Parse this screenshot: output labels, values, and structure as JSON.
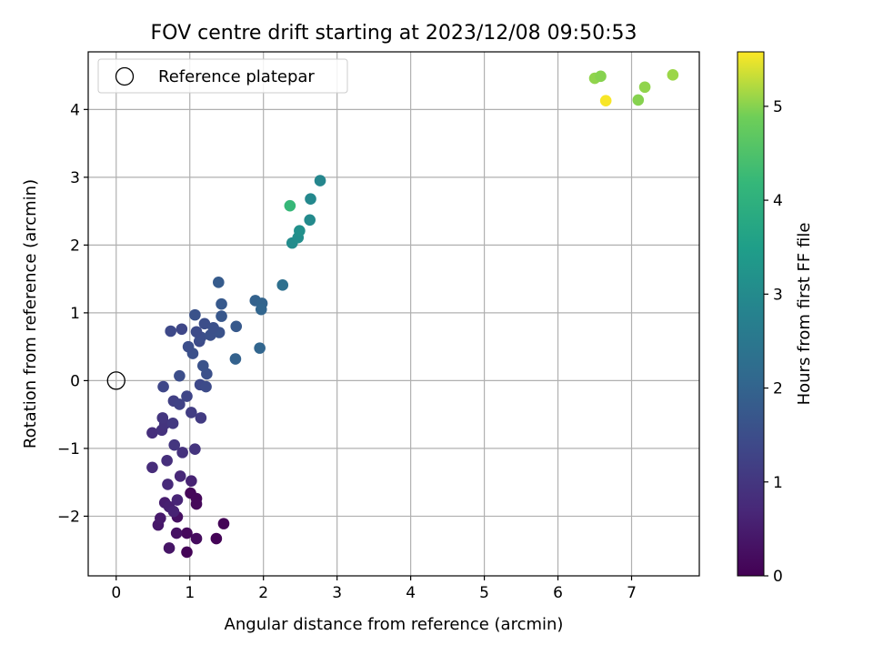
{
  "chart_data": {
    "type": "scatter",
    "title": "FOV centre drift starting at 2023/12/08 09:50:53",
    "xlabel": "Angular distance from reference (arcmin)",
    "ylabel": "Rotation from reference (arcmin)",
    "xlim": [
      -0.38,
      7.92
    ],
    "ylim": [
      -2.88,
      4.85
    ],
    "x_ticks": [
      0,
      1,
      2,
      3,
      4,
      5,
      6,
      7
    ],
    "y_ticks": [
      -2,
      -1,
      0,
      1,
      2,
      3,
      4
    ],
    "x_tick_labels": [
      "0",
      "1",
      "2",
      "3",
      "4",
      "5",
      "6",
      "7"
    ],
    "y_tick_labels": [
      "−2",
      "−1",
      "0",
      "1",
      "2",
      "3",
      "4"
    ],
    "grid": true,
    "legend": {
      "position": "top-left",
      "entries": [
        "Reference platepar"
      ]
    },
    "reference_point": {
      "x": 0,
      "y": 0,
      "label": "Reference platepar",
      "marker": "open-circle"
    },
    "colorbar": {
      "label": "Hours from first FF file",
      "range": [
        0,
        5.58
      ],
      "ticks": [
        0,
        1,
        2,
        3,
        4,
        5
      ],
      "tick_labels": [
        "0",
        "1",
        "2",
        "3",
        "4",
        "5"
      ],
      "colormap": "viridis",
      "position": "right"
    },
    "points": [
      {
        "x": 0.96,
        "y": -2.53,
        "t": 0.05
      },
      {
        "x": 1.36,
        "y": -2.33,
        "t": 0.05
      },
      {
        "x": 1.46,
        "y": -2.11,
        "t": 0.05
      },
      {
        "x": 1.01,
        "y": -1.66,
        "t": 0.1
      },
      {
        "x": 1.09,
        "y": -1.74,
        "t": 0.1
      },
      {
        "x": 1.09,
        "y": -1.82,
        "t": 0.12
      },
      {
        "x": 0.96,
        "y": -2.25,
        "t": 0.15
      },
      {
        "x": 1.09,
        "y": -2.33,
        "t": 0.2
      },
      {
        "x": 0.83,
        "y": -2.01,
        "t": 0.25
      },
      {
        "x": 0.82,
        "y": -2.25,
        "t": 0.3
      },
      {
        "x": 0.72,
        "y": -2.47,
        "t": 0.35
      },
      {
        "x": 0.57,
        "y": -2.13,
        "t": 0.4
      },
      {
        "x": 0.6,
        "y": -2.03,
        "t": 0.45
      },
      {
        "x": 0.66,
        "y": -1.8,
        "t": 0.5
      },
      {
        "x": 0.72,
        "y": -1.86,
        "t": 0.55
      },
      {
        "x": 0.78,
        "y": -1.93,
        "t": 0.6
      },
      {
        "x": 0.83,
        "y": -1.76,
        "t": 0.65
      },
      {
        "x": 1.02,
        "y": -1.48,
        "t": 0.6
      },
      {
        "x": 0.87,
        "y": -1.41,
        "t": 0.7
      },
      {
        "x": 0.7,
        "y": -1.53,
        "t": 0.75
      },
      {
        "x": 0.49,
        "y": -1.28,
        "t": 0.8
      },
      {
        "x": 0.69,
        "y": -1.18,
        "t": 0.85
      },
      {
        "x": 0.9,
        "y": -1.06,
        "t": 0.9
      },
      {
        "x": 1.07,
        "y": -1.01,
        "t": 0.95
      },
      {
        "x": 0.79,
        "y": -0.95,
        "t": 1.0
      },
      {
        "x": 0.49,
        "y": -0.77,
        "t": 0.85
      },
      {
        "x": 0.62,
        "y": -0.73,
        "t": 0.9
      },
      {
        "x": 0.66,
        "y": -0.64,
        "t": 0.95
      },
      {
        "x": 0.63,
        "y": -0.55,
        "t": 1.0
      },
      {
        "x": 0.77,
        "y": -0.63,
        "t": 1.05
      },
      {
        "x": 1.15,
        "y": -0.55,
        "t": 1.1
      },
      {
        "x": 1.02,
        "y": -0.47,
        "t": 1.15
      },
      {
        "x": 0.78,
        "y": -0.3,
        "t": 1.2
      },
      {
        "x": 0.86,
        "y": -0.35,
        "t": 1.25
      },
      {
        "x": 0.96,
        "y": -0.23,
        "t": 1.3
      },
      {
        "x": 0.64,
        "y": -0.09,
        "t": 1.35
      },
      {
        "x": 1.14,
        "y": -0.06,
        "t": 1.4
      },
      {
        "x": 1.22,
        "y": -0.09,
        "t": 1.45
      },
      {
        "x": 0.86,
        "y": 0.07,
        "t": 1.5
      },
      {
        "x": 1.23,
        "y": 0.1,
        "t": 1.55
      },
      {
        "x": 1.18,
        "y": 0.22,
        "t": 1.6
      },
      {
        "x": 1.04,
        "y": 0.4,
        "t": 1.55
      },
      {
        "x": 0.98,
        "y": 0.5,
        "t": 1.5
      },
      {
        "x": 1.13,
        "y": 0.58,
        "t": 1.45
      },
      {
        "x": 1.15,
        "y": 0.64,
        "t": 1.5
      },
      {
        "x": 1.28,
        "y": 0.67,
        "t": 1.55
      },
      {
        "x": 1.4,
        "y": 0.71,
        "t": 1.6
      },
      {
        "x": 1.09,
        "y": 0.72,
        "t": 1.45
      },
      {
        "x": 0.74,
        "y": 0.73,
        "t": 1.4
      },
      {
        "x": 0.89,
        "y": 0.76,
        "t": 1.35
      },
      {
        "x": 1.2,
        "y": 0.84,
        "t": 1.5
      },
      {
        "x": 1.32,
        "y": 0.78,
        "t": 1.55
      },
      {
        "x": 1.63,
        "y": 0.8,
        "t": 1.75
      },
      {
        "x": 1.43,
        "y": 0.95,
        "t": 1.7
      },
      {
        "x": 1.07,
        "y": 0.97,
        "t": 1.6
      },
      {
        "x": 1.43,
        "y": 1.13,
        "t": 1.75
      },
      {
        "x": 1.39,
        "y": 1.45,
        "t": 1.8
      },
      {
        "x": 1.62,
        "y": 0.32,
        "t": 1.95
      },
      {
        "x": 1.95,
        "y": 0.48,
        "t": 2.05
      },
      {
        "x": 1.89,
        "y": 1.18,
        "t": 1.95
      },
      {
        "x": 1.98,
        "y": 1.14,
        "t": 2.0
      },
      {
        "x": 1.97,
        "y": 1.05,
        "t": 2.05
      },
      {
        "x": 2.26,
        "y": 1.41,
        "t": 2.3
      },
      {
        "x": 2.39,
        "y": 2.03,
        "t": 3.05
      },
      {
        "x": 2.47,
        "y": 2.11,
        "t": 3.1
      },
      {
        "x": 2.49,
        "y": 2.21,
        "t": 3.15
      },
      {
        "x": 2.63,
        "y": 2.37,
        "t": 3.0
      },
      {
        "x": 2.64,
        "y": 2.68,
        "t": 2.95
      },
      {
        "x": 2.77,
        "y": 2.95,
        "t": 2.9
      },
      {
        "x": 2.36,
        "y": 2.58,
        "t": 4.2
      },
      {
        "x": 6.5,
        "y": 4.46,
        "t": 5.05
      },
      {
        "x": 6.58,
        "y": 4.49,
        "t": 5.0
      },
      {
        "x": 7.56,
        "y": 4.51,
        "t": 5.1
      },
      {
        "x": 7.18,
        "y": 4.33,
        "t": 5.05
      },
      {
        "x": 7.09,
        "y": 4.14,
        "t": 5.0
      },
      {
        "x": 6.65,
        "y": 4.13,
        "t": 5.55
      }
    ]
  }
}
